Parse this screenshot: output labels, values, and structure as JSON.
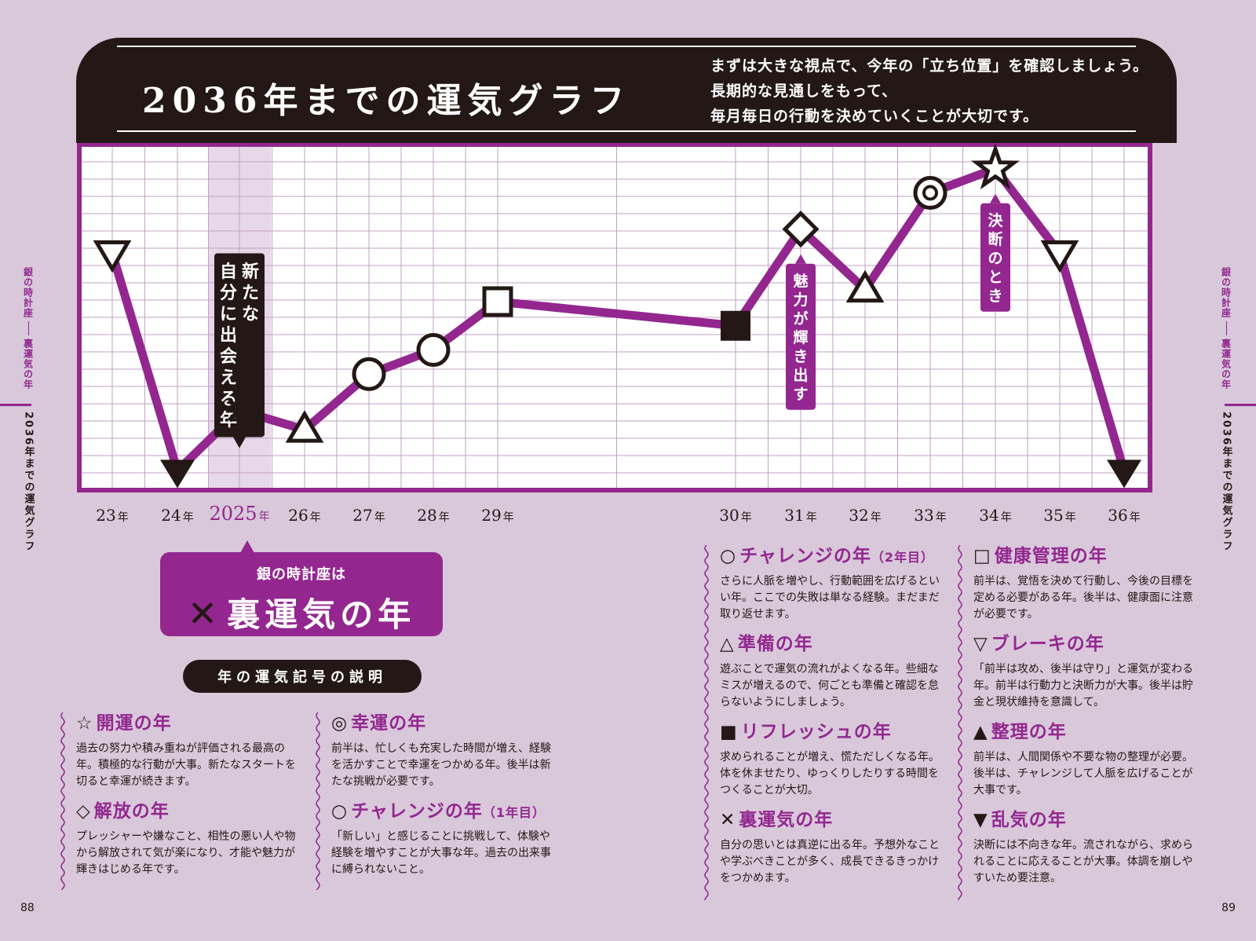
{
  "page_numbers": {
    "left": "88",
    "right": "89"
  },
  "side_tabs": {
    "constellation": "銀の時計座",
    "section": "裏運気の年",
    "main": "2036年までの運気グラフ"
  },
  "header": {
    "title": "2036年までの運気グラフ",
    "intro": [
      "まずは大きな視点で、今年の「立ち位置」を確認しましょう。",
      "長期的な見通しをもって、",
      "毎月毎日の行動を決めていくことが大切です。"
    ]
  },
  "chart_data": {
    "type": "line",
    "categories": [
      "23",
      "24",
      "2025",
      "26",
      "27",
      "28",
      "29",
      "30",
      "31",
      "32",
      "33",
      "34",
      "35",
      "36"
    ],
    "year_suffix": "年",
    "current_year_label": "2025",
    "series": [
      {
        "values": [
          9.0,
          0.0,
          2.5,
          1.7,
          4.0,
          5.0,
          7.0,
          6.0,
          10.0,
          7.5,
          11.5,
          12.5,
          9.0,
          0.0
        ],
        "markers": [
          "brake",
          "disorder",
          "reverse",
          "prepare",
          "challenge",
          "challenge",
          "health",
          "refresh",
          "release",
          "prepare",
          "fortune",
          "luck",
          "brake",
          "disorder"
        ]
      }
    ],
    "ylim": [
      -0.8,
      13.5
    ],
    "grid": true,
    "colors": {
      "line": "#93278f",
      "grid": "#c2a0c6",
      "frame": "#93278f",
      "highlight": "#e6d8e8",
      "marker": "#231815"
    },
    "annotations": [
      {
        "year": "2025",
        "text": "新たな自分に出会える年",
        "style": "dark"
      },
      {
        "year": "31",
        "text": "魅力が輝き出す",
        "style": "purple"
      },
      {
        "year": "34",
        "text": "決断のとき",
        "style": "purple"
      }
    ]
  },
  "callout": {
    "small": "銀の時計座は",
    "mark": "✕",
    "large": "裏運気の年"
  },
  "legend": {
    "title": "年の運気記号の説明",
    "items": [
      {
        "symbol": "☆",
        "icon": "star-icon",
        "name": "開運の年",
        "sub": "",
        "desc": "過去の努力や積み重ねが評価される最高の年。積極的な行動が大事。新たなスタートを切ると幸運が続きます。"
      },
      {
        "symbol": "◇",
        "icon": "diamond-icon",
        "name": "解放の年",
        "sub": "",
        "desc": "プレッシャーや嫌なこと、相性の悪い人や物から解放されて気が楽になり、才能や魅力が輝きはじめる年です。"
      },
      {
        "symbol": "◎",
        "icon": "double-circle-icon",
        "name": "幸運の年",
        "sub": "",
        "desc": "前半は、忙しくも充実した時間が増え、経験を活かすことで幸運をつかめる年。後半は新たな挑戦が必要です。"
      },
      {
        "symbol": "○",
        "icon": "circle-icon",
        "name": "チャレンジの年",
        "sub": "（1年目）",
        "desc": "「新しい」と感じることに挑戦して、体験や経験を増やすことが大事な年。過去の出来事に縛られないこと。"
      },
      {
        "symbol": "○",
        "icon": "circle-icon",
        "name": "チャレンジの年",
        "sub": "（2年目）",
        "desc": "さらに人脈を増やし、行動範囲を広げるといい年。ここでの失敗は単なる経験。まだまだ取り返せます。"
      },
      {
        "symbol": "△",
        "icon": "triangle-icon",
        "name": "準備の年",
        "sub": "",
        "desc": "遊ぶことで運気の流れがよくなる年。些細なミスが増えるので、何ごとも準備と確認を怠らないようにしましょう。"
      },
      {
        "symbol": "■",
        "icon": "filled-square-icon",
        "name": "リフレッシュの年",
        "sub": "",
        "desc": "求められることが増え、慌ただしくなる年。体を休ませたり、ゆっくりしたりする時間をつくることが大切。"
      },
      {
        "symbol": "✕",
        "icon": "cross-icon",
        "name": "裏運気の年",
        "sub": "",
        "desc": "自分の思いとは真逆に出る年。予想外なことや学ぶべきことが多く、成長できるきっかけをつかめます。"
      },
      {
        "symbol": "□",
        "icon": "square-icon",
        "name": "健康管理の年",
        "sub": "",
        "desc": "前半は、覚悟を決めて行動し、今後の目標を定める必要がある年。後半は、健康面に注意が必要です。"
      },
      {
        "symbol": "▽",
        "icon": "down-triangle-icon",
        "name": "ブレーキの年",
        "sub": "",
        "desc": "「前半は攻め、後半は守り」と運気が変わる年。前半は行動力と決断力が大事。後半は貯金と現状維持を意識して。"
      },
      {
        "symbol": "▲",
        "icon": "filled-triangle-icon",
        "name": "整理の年",
        "sub": "",
        "desc": "前半は、人間関係や不要な物の整理が必要。後半は、チャレンジして人脈を広げることが大事です。"
      },
      {
        "symbol": "▼",
        "icon": "filled-down-triangle-icon",
        "name": "乱気の年",
        "sub": "",
        "desc": "決断には不向きな年。流されながら、求められることに応えることが大事。体調を崩しやすいため要注意。"
      }
    ]
  }
}
